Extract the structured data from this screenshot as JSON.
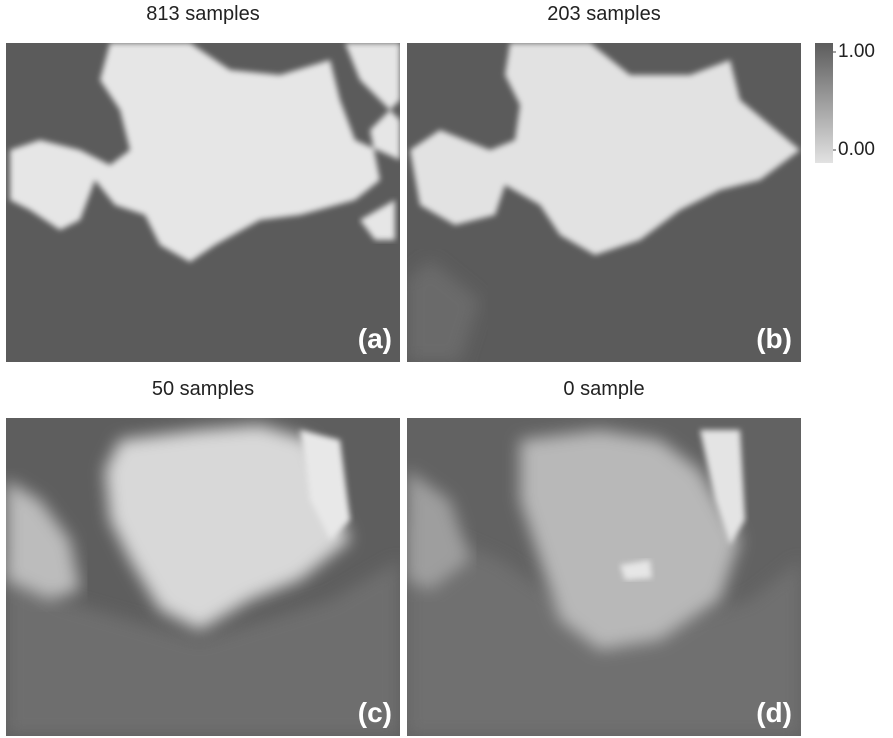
{
  "panels": [
    {
      "title": "813 samples",
      "label": "(a)"
    },
    {
      "title": "203 samples",
      "label": "(b)"
    },
    {
      "title": "50 samples",
      "label": "(c)"
    },
    {
      "title": "0 sample",
      "label": "(d)"
    }
  ],
  "colorbar": {
    "ticks": [
      {
        "value": 1,
        "label": "1.00"
      },
      {
        "value": 0,
        "label": "0.00"
      }
    ]
  }
}
